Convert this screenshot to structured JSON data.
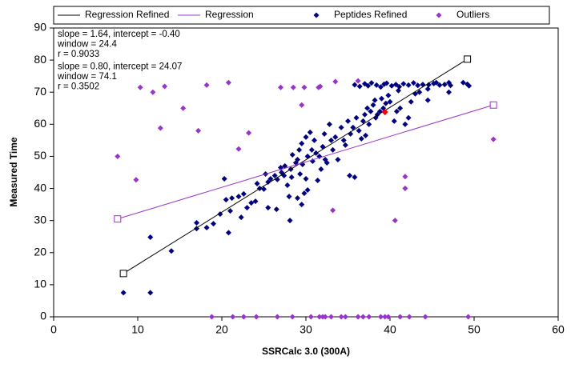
{
  "chart_data": {
    "type": "scatter",
    "xlabel": "SSRCalc 3.0 (300A)",
    "ylabel": "Measured Time",
    "xlim": [
      0,
      60
    ],
    "ylim": [
      0,
      90
    ],
    "xticks": [
      0,
      10,
      20,
      30,
      40,
      50,
      60
    ],
    "yticks": [
      0,
      10,
      20,
      30,
      40,
      50,
      60,
      70,
      80,
      90
    ],
    "grid": false,
    "legend": "top",
    "annotations": [
      {
        "color": "#000000",
        "lines": [
          "slope = 1.64, intercept = -0.40",
          "window = 24.4",
          "r = 0.9033"
        ]
      },
      {
        "color": "#9933cc",
        "lines": [
          "slope = 0.80, intercept = 24.07",
          "window = 74.1",
          "r = 0.3502"
        ]
      }
    ],
    "series": [
      {
        "name": "Regression Refined",
        "kind": "line",
        "color": "#000000",
        "x": [
          8.3,
          49.2
        ],
        "values": [
          13.5,
          80.3
        ]
      },
      {
        "name": "Regression",
        "kind": "line",
        "color": "#9933cc",
        "x": [
          7.6,
          52.3
        ],
        "values": [
          30.5,
          66.0
        ]
      },
      {
        "name": "Peptides Refined",
        "kind": "points",
        "color": "#000080",
        "x": [
          8.3,
          11.5,
          11.5,
          14,
          17,
          17,
          18.2,
          19,
          19.8,
          20.3,
          20.5,
          20.8,
          21,
          21.2,
          22,
          22.3,
          22.6,
          23,
          23.5,
          24,
          24.2,
          24.5,
          25,
          25.2,
          25.5,
          25.8,
          25.5,
          26.3,
          26.5,
          26.6,
          27,
          27.1,
          27.4,
          27.5,
          27.8,
          28,
          28.1,
          28.2,
          28.3,
          28.4,
          28.8,
          29,
          29,
          29.2,
          29.3,
          29.5,
          29.5,
          29.6,
          29.8,
          30,
          30,
          30.2,
          30.2,
          30.5,
          30.7,
          30.8,
          31,
          31.2,
          31.4,
          31.6,
          31.8,
          32,
          32.2,
          32.3,
          32.5,
          32.8,
          33,
          33.2,
          33.5,
          33.8,
          34.2,
          34.5,
          34.7,
          35,
          35.2,
          35.3,
          35.6,
          35.8,
          36,
          36.3,
          36.6,
          36.8,
          37,
          37.1,
          37.3,
          37.5,
          37.7,
          38,
          38.2,
          38.3,
          38.5,
          38.8,
          39,
          39.2,
          39.5,
          39.8,
          40,
          40.5,
          40.8,
          41,
          41.2,
          41.8,
          42.2,
          42.5,
          43,
          43.5,
          44.5,
          44.5,
          45.5,
          47,
          47,
          48.7,
          49.2,
          49.4,
          35.8,
          36.4,
          37,
          37.4,
          37.8,
          38.4,
          38.9,
          39.3,
          39.6,
          40.2,
          40.7,
          41.1,
          41.6,
          42.2,
          42.8,
          43.3,
          43.9,
          44.6,
          45.2,
          45.9,
          46.5,
          47.2
        ],
        "values": [
          7.5,
          7.5,
          24.8,
          20.5,
          29.3,
          27.5,
          27.8,
          29,
          32,
          43,
          36.5,
          26.2,
          33,
          37,
          37.5,
          31,
          38.3,
          34,
          35.5,
          36,
          41.5,
          40,
          39.8,
          44.5,
          42,
          43,
          34,
          44,
          33.5,
          42.8,
          46.5,
          45,
          44,
          47,
          41,
          37.5,
          30,
          46,
          43.5,
          50.5,
          48,
          37,
          49,
          52,
          44.5,
          54,
          35,
          47.5,
          38.5,
          56,
          43,
          50,
          39.5,
          57.5,
          52,
          48.5,
          55,
          51,
          42.5,
          50,
          46,
          53,
          57,
          49,
          48,
          60,
          55,
          52,
          56,
          49,
          59,
          55,
          53.5,
          61,
          44,
          57,
          59,
          43.5,
          62,
          58,
          55.5,
          61,
          63,
          56.5,
          65,
          60,
          64,
          66,
          67.5,
          62,
          63,
          64,
          68,
          65,
          66.5,
          69,
          67,
          61,
          64,
          70.5,
          65,
          60,
          62,
          67,
          69.5,
          70,
          71,
          67.5,
          73,
          70,
          73,
          73,
          72.5,
          72,
          72.3,
          71.8,
          72.6,
          72,
          72.9,
          72.2,
          71.6,
          72.5,
          72.8,
          72,
          72.4,
          71.7,
          72.6,
          72.2,
          72.9,
          72.1,
          72.4,
          72.3,
          72.7,
          72.2,
          72.4,
          72.1
        ]
      },
      {
        "name": "Outliers",
        "kind": "points",
        "color": "#9933cc",
        "x": [
          7.6,
          9.8,
          10.3,
          11.8,
          12.7,
          13.2,
          15.4,
          17.2,
          18.2,
          20.8,
          22,
          23.2,
          27,
          28.5,
          29.5,
          29.8,
          31.5,
          31.7,
          33.2,
          33.5,
          36.2,
          40.6,
          41.8,
          41.8,
          52.3,
          18.8,
          21.3,
          22.6,
          24.1,
          26.6,
          28.4,
          30.6,
          31.6,
          32,
          32.3,
          33,
          34.2,
          34.7,
          36.2,
          36.8,
          37.5,
          38.9,
          39.4,
          39.8,
          41.2,
          42.3,
          44.2,
          49.3
        ],
        "values": [
          50,
          42.7,
          71.5,
          70,
          58.8,
          71.8,
          65,
          58,
          72.2,
          73,
          52.3,
          57.3,
          71.5,
          71.5,
          66,
          71.5,
          71.5,
          71.8,
          33.2,
          73.3,
          73.5,
          30,
          43.7,
          40,
          55.3,
          0,
          0,
          0,
          0,
          0,
          0,
          0,
          0,
          0,
          0,
          0,
          0,
          0,
          0,
          0,
          0,
          0,
          0,
          0,
          0,
          0,
          0,
          0
        ]
      }
    ],
    "highlight": {
      "color": "#ff0000",
      "x": 39.4,
      "y": 63.8
    }
  }
}
